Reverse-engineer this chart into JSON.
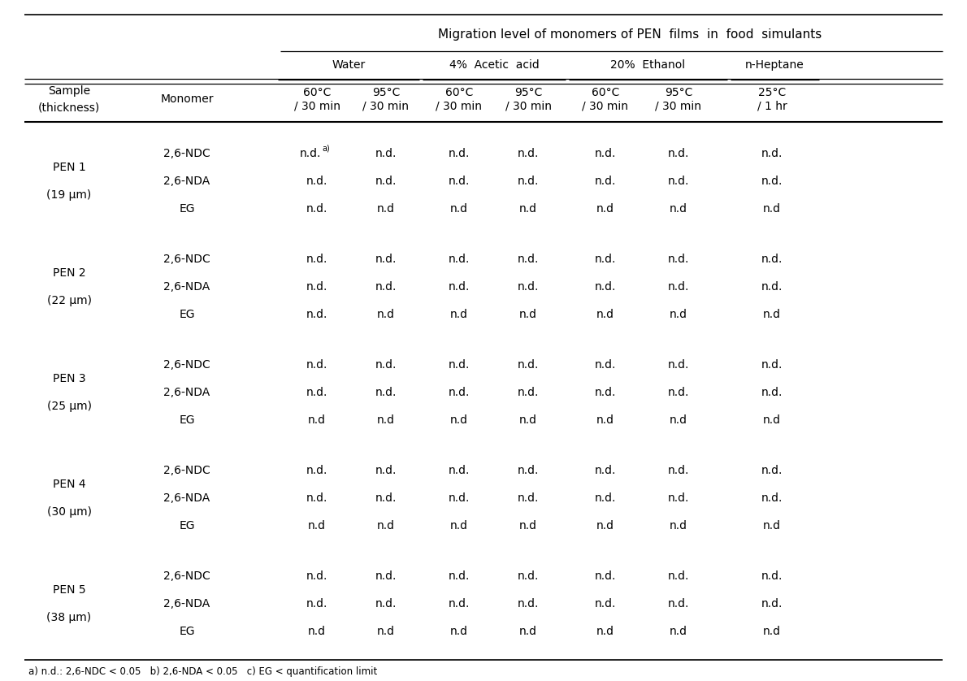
{
  "title": "Migration level of monomers of PEN  films  in  food  simulants",
  "group_labels": [
    "Water",
    "4%  Acetic  acid",
    "20%  Ethanol",
    "n-Heptane"
  ],
  "group_col_spans": [
    [
      0,
      1
    ],
    [
      2,
      3
    ],
    [
      4,
      5
    ],
    [
      6
    ]
  ],
  "subheader_temp": [
    "60°C",
    "95°C",
    "60°C",
    "95°C",
    "60°C",
    "95°C",
    "25°C"
  ],
  "subheader_time": [
    "/ 30 min",
    "/ 30 min",
    "/ 30 min",
    "/ 30 min",
    "/ 30 min",
    "/ 30 min",
    "/ 1 hr"
  ],
  "sample_label1": "Sample",
  "sample_label2": "(thickness)",
  "monomer_label": "Monomer",
  "samples": [
    {
      "name": "PEN 1",
      "thickness": "(19 μm)",
      "monomers": [
        "2,6-NDC",
        "2,6-NDA",
        "EG"
      ],
      "data": [
        [
          "n.d.",
          "n.d.",
          "n.d.",
          "n.d.",
          "n.d.",
          "n.d.",
          "n.d."
        ],
        [
          "n.d.",
          "n.d.",
          "n.d.",
          "n.d.",
          "n.d.",
          "n.d.",
          "n.d."
        ],
        [
          "n.d.",
          "n.d",
          "n.d",
          "n.d",
          "n.d",
          "n.d",
          "n.d"
        ]
      ],
      "first_cell_superscript": true
    },
    {
      "name": "PEN 2",
      "thickness": "(22 μm)",
      "monomers": [
        "2,6-NDC",
        "2,6-NDA",
        "EG"
      ],
      "data": [
        [
          "n.d.",
          "n.d.",
          "n.d.",
          "n.d.",
          "n.d.",
          "n.d.",
          "n.d."
        ],
        [
          "n.d.",
          "n.d.",
          "n.d.",
          "n.d.",
          "n.d.",
          "n.d.",
          "n.d."
        ],
        [
          "n.d.",
          "n.d",
          "n.d",
          "n.d",
          "n.d",
          "n.d",
          "n.d"
        ]
      ],
      "first_cell_superscript": false
    },
    {
      "name": "PEN 3",
      "thickness": "(25 μm)",
      "monomers": [
        "2,6-NDC",
        "2,6-NDA",
        "EG"
      ],
      "data": [
        [
          "n.d.",
          "n.d.",
          "n.d.",
          "n.d.",
          "n.d.",
          "n.d.",
          "n.d."
        ],
        [
          "n.d.",
          "n.d.",
          "n.d.",
          "n.d.",
          "n.d.",
          "n.d.",
          "n.d."
        ],
        [
          "n.d",
          "n.d",
          "n.d",
          "n.d",
          "n.d",
          "n.d",
          "n.d"
        ]
      ],
      "first_cell_superscript": false
    },
    {
      "name": "PEN 4",
      "thickness": "(30 μm)",
      "monomers": [
        "2,6-NDC",
        "2,6-NDA",
        "EG"
      ],
      "data": [
        [
          "n.d.",
          "n.d.",
          "n.d.",
          "n.d.",
          "n.d.",
          "n.d.",
          "n.d."
        ],
        [
          "n.d.",
          "n.d.",
          "n.d.",
          "n.d.",
          "n.d.",
          "n.d.",
          "n.d."
        ],
        [
          "n.d",
          "n.d",
          "n.d",
          "n.d",
          "n.d",
          "n.d",
          "n.d"
        ]
      ],
      "first_cell_superscript": false
    },
    {
      "name": "PEN 5",
      "thickness": "(38 μm)",
      "monomers": [
        "2,6-NDC",
        "2,6-NDA",
        "EG"
      ],
      "data": [
        [
          "n.d.",
          "n.d.",
          "n.d.",
          "n.d.",
          "n.d.",
          "n.d.",
          "n.d."
        ],
        [
          "n.d.",
          "n.d.",
          "n.d.",
          "n.d.",
          "n.d.",
          "n.d.",
          "n.d."
        ],
        [
          "n.d",
          "n.d",
          "n.d",
          "n.d",
          "n.d",
          "n.d",
          "n.d"
        ]
      ],
      "first_cell_superscript": false
    }
  ],
  "footnote": "a) n.d.: 2,6-NDC < 0.05   b) 2,6-NDA < 0.05   c) EG < quantification limit",
  "font_family": "DejaVu Sans",
  "fontsize_title": 11.0,
  "fontsize_header": 10.0,
  "fontsize_body": 10.0,
  "fontsize_footnote": 8.5
}
